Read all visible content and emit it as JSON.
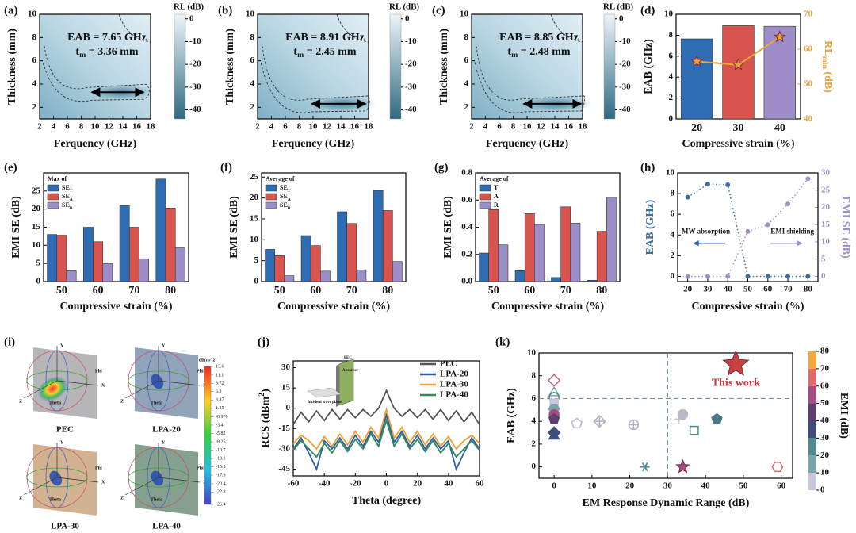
{
  "chart_data": [
    {
      "type": "heatmap",
      "panel": "(a)",
      "xlabel": "Ferquency (GHz)",
      "ylabel": "Thickness (mm)",
      "xlim": [
        2,
        18
      ],
      "xticks": [
        2,
        4,
        6,
        8,
        10,
        12,
        14,
        16,
        18
      ],
      "ylim": [
        1,
        10
      ],
      "yticks": [
        2,
        4,
        6,
        8,
        10
      ],
      "colorbar": {
        "title": "RL (dB)",
        "lim": [
          -44,
          2
        ],
        "ticks": [
          0,
          -10,
          -20,
          -30,
          -40
        ],
        "colors": [
          "#eef4fa",
          "#2f6a80"
        ]
      },
      "annotations": [
        "EAB = 7.65 GHz",
        {
          "text": "t",
          "sub": "m",
          "suffix": " = 3.36 mm"
        }
      ],
      "arrow": {
        "x": [
          9.5,
          17
        ],
        "y": 3.3
      }
    },
    {
      "type": "heatmap",
      "panel": "(b)",
      "xlabel": "Ferquency (GHz)",
      "ylabel": "Thickness (mm)",
      "xlim": [
        2,
        18
      ],
      "xticks": [
        2,
        4,
        6,
        8,
        10,
        12,
        14,
        16,
        18
      ],
      "ylim": [
        1,
        10
      ],
      "yticks": [
        2,
        4,
        6,
        8,
        10
      ],
      "colorbar": {
        "title": "RL (dB)",
        "lim": [
          -44,
          2
        ],
        "ticks": [
          0,
          -10,
          -20,
          -30,
          -40
        ],
        "colors": [
          "#eef4fa",
          "#2f6a80"
        ]
      },
      "annotations": [
        "EAB = 8.91 GHz",
        {
          "text": "t",
          "sub": "m",
          "suffix": " = 2.45 mm"
        }
      ],
      "arrow": {
        "x": [
          9.8,
          17.6
        ],
        "y": 2.3
      }
    },
    {
      "type": "heatmap",
      "panel": "(c)",
      "xlabel": "Ferquency (GHz)",
      "ylabel": "Thickness (mm)",
      "xlim": [
        2,
        18
      ],
      "xticks": [
        2,
        4,
        6,
        8,
        10,
        12,
        14,
        16,
        18
      ],
      "ylim": [
        1,
        10
      ],
      "yticks": [
        2,
        4,
        6,
        8,
        10
      ],
      "colorbar": {
        "title": "RL (dB)",
        "lim": [
          -44,
          2
        ],
        "ticks": [
          0,
          -10,
          -20,
          -30,
          -40
        ],
        "colors": [
          "#eef4fa",
          "#2f6a80"
        ]
      },
      "annotations": [
        "EAB = 8.85 GHz",
        {
          "text": "t",
          "sub": "m",
          "suffix": " = 2.48 mm"
        }
      ],
      "arrow": {
        "x": [
          9.5,
          17.8
        ],
        "y": 2.3
      }
    },
    {
      "type": "bar",
      "panel": "(d)",
      "xlabel": "Compressive strain (%)",
      "ylabel": "EAB (GHz)",
      "y2label": {
        "text": "RL",
        "sub": "min",
        "suffix": " (dB)"
      },
      "categories": [
        "20",
        "30",
        "40"
      ],
      "ylim": [
        0,
        10
      ],
      "yticks": [
        0,
        2,
        4,
        6,
        8,
        10
      ],
      "y2lim": [
        40,
        70
      ],
      "y2ticks": [
        40,
        50,
        60,
        70
      ],
      "series": [
        {
          "colors": [
            "#2e6db4",
            "#d9534f",
            "#9d8ec9"
          ],
          "values": [
            7.65,
            8.91,
            8.85
          ]
        },
        {
          "axis": "y2",
          "color": "#e8a33c",
          "values": [
            56.5,
            55.5,
            63.5
          ]
        }
      ]
    },
    {
      "type": "grouped_bar",
      "panel": "(e)",
      "legend_title": "Max of",
      "xlabel": "Compressive strain (%)",
      "ylabel": "EMI SE (dB)",
      "categories": [
        "50",
        "60",
        "70",
        "80"
      ],
      "ylim": [
        0,
        30
      ],
      "yticks": [
        0,
        5,
        10,
        15,
        20,
        25
      ],
      "series": [
        {
          "name": {
            "text": "SE",
            "sub": "T"
          },
          "color": "#2e6db4",
          "values": [
            13,
            15,
            21,
            28.3
          ]
        },
        {
          "name": {
            "text": "SE",
            "sub": "A"
          },
          "color": "#d9534f",
          "values": [
            12.8,
            11,
            15,
            20.3
          ]
        },
        {
          "name": {
            "text": "SE",
            "sub": "R"
          },
          "color": "#9d8ec9",
          "values": [
            3,
            5,
            6.3,
            9.3
          ]
        }
      ]
    },
    {
      "type": "grouped_bar",
      "panel": "(f)",
      "legend_title": "Average of",
      "xlabel": "Compressive strain (%)",
      "ylabel": "EMI SE (dB)",
      "categories": [
        "50",
        "60",
        "70",
        "80"
      ],
      "ylim": [
        0,
        26
      ],
      "yticks": [
        0,
        5,
        10,
        15,
        20,
        25
      ],
      "series": [
        {
          "name": {
            "text": "SE",
            "sub": "T"
          },
          "color": "#2e6db4",
          "values": [
            7.7,
            11,
            16.7,
            21.8
          ]
        },
        {
          "name": {
            "text": "SE",
            "sub": "A"
          },
          "color": "#d9534f",
          "values": [
            6.2,
            8.6,
            13.9,
            17
          ]
        },
        {
          "name": {
            "text": "SE",
            "sub": "R"
          },
          "color": "#9d8ec9",
          "values": [
            1.4,
            2.5,
            2.8,
            4.8
          ]
        }
      ]
    },
    {
      "type": "grouped_bar",
      "panel": "(g)",
      "legend_title": "Average of",
      "xlabel": "Compressive strain (%)",
      "ylabel": "EMI SE (dB)",
      "categories": [
        "50",
        "60",
        "70",
        "80"
      ],
      "ylim": [
        0,
        0.8
      ],
      "yticks": [
        {
          "value": 0,
          "label": "0.0"
        },
        0.2,
        0.4,
        0.6,
        0.8
      ],
      "series": [
        {
          "name": "T",
          "color": "#2e6db4",
          "values": [
            0.21,
            0.08,
            0.03,
            0.01
          ]
        },
        {
          "name": "A",
          "color": "#d9534f",
          "values": [
            0.53,
            0.5,
            0.55,
            0.37
          ]
        },
        {
          "name": "R",
          "color": "#9d8ec9",
          "values": [
            0.27,
            0.42,
            0.43,
            0.62
          ]
        }
      ]
    },
    {
      "type": "scatter",
      "panel": "(h)",
      "xlabel": "Compressive strain (%)",
      "ylabel": "EAB (GHz)",
      "y2label": "EMI SE (dB)",
      "annotations": [
        "MW absorption",
        "EMI shielding"
      ],
      "xlim": [
        15,
        85
      ],
      "xticks": [
        20,
        30,
        40,
        50,
        60,
        70,
        80
      ],
      "ylim": [
        -0.5,
        10
      ],
      "yticks": [
        0,
        2,
        4,
        6,
        8,
        10
      ],
      "y2lim": [
        -1.5,
        30
      ],
      "y2ticks": [
        0,
        5,
        10,
        15,
        20,
        25,
        30
      ],
      "x": [
        20,
        30,
        40,
        50,
        60,
        70,
        80
      ],
      "series": [
        {
          "color": "#3a6ea5",
          "values": [
            7.65,
            8.91,
            8.85,
            0,
            0,
            0,
            0
          ]
        },
        {
          "axis": "y2",
          "color": "#9d8ec9",
          "values": [
            0,
            0,
            0,
            13,
            15,
            21,
            28.3
          ]
        }
      ]
    },
    {
      "type": "render",
      "panel": "(i)",
      "labels": [
        "PEC",
        "LPA-20",
        "LPA-30",
        "LPA-40"
      ],
      "colors": [
        "#a9a9ad",
        "#7e93ad",
        "#c9a67e",
        "#708f7a"
      ],
      "axis_labels": [
        "Y",
        "X",
        "Z",
        "Phi",
        "Theta"
      ],
      "colorbar": {
        "title": "dB(m^2)",
        "ticks": [
          13.6,
          11.1,
          8.72,
          6.3,
          3.87,
          1.45,
          -0.976,
          -3.4,
          -5.82,
          -8.25,
          -10.7,
          -13.1,
          -15.5,
          -17.9,
          -20.4,
          -22.8,
          -26.4
        ]
      }
    },
    {
      "type": "line",
      "panel": "(j)",
      "xlabel": "Theta (degree)",
      "ylabel": {
        "text": "RCS (dBm",
        "sup": "2",
        "suffix": ")"
      },
      "inset_labels": [
        "PEC",
        "Absorber",
        "Incident wave plane"
      ],
      "xlim": [
        -60,
        60
      ],
      "xticks": [
        -60,
        -40,
        -20,
        0,
        20,
        40,
        60
      ],
      "ylim": [
        -50,
        35
      ],
      "yticks": [
        -45,
        -30,
        -15,
        0,
        15,
        30
      ],
      "x": [
        -60,
        -55,
        -50,
        -45,
        -40,
        -35,
        -30,
        -25,
        -20,
        -15,
        -10,
        -5,
        0,
        5,
        10,
        15,
        20,
        25,
        30,
        35,
        40,
        45,
        50,
        55,
        60
      ],
      "series": [
        {
          "name": "PEC",
          "color": "#555555",
          "values": [
            -12,
            -3,
            -10,
            -2,
            -9,
            -1,
            -8,
            -1,
            -7,
            -1,
            -6,
            0,
            13,
            0,
            -6,
            -1,
            -7,
            -1,
            -8,
            -1,
            -9,
            -2,
            -10,
            -3,
            -12
          ]
        },
        {
          "name": "LPA-20",
          "color": "#2e5fa8",
          "values": [
            -30,
            -22,
            -33,
            -45,
            -24,
            -30,
            -22,
            -30,
            -20,
            -28,
            -17,
            -25,
            -5,
            -25,
            -17,
            -28,
            -20,
            -30,
            -22,
            -30,
            -24,
            -45,
            -33,
            -22,
            -30
          ]
        },
        {
          "name": "LPA-30",
          "color": "#f0a030",
          "values": [
            -26,
            -20,
            -24,
            -30,
            -21,
            -28,
            -19,
            -27,
            -17,
            -25,
            -14,
            -22,
            -1,
            -22,
            -14,
            -25,
            -17,
            -27,
            -19,
            -28,
            -21,
            -30,
            -24,
            -20,
            -26
          ]
        },
        {
          "name": "LPA-40",
          "color": "#2e8a5a",
          "values": [
            -31,
            -24,
            -30,
            -36,
            -26,
            -33,
            -24,
            -32,
            -23,
            -30,
            -19,
            -28,
            -9,
            -28,
            -19,
            -30,
            -23,
            -32,
            -24,
            -33,
            -26,
            -36,
            -30,
            -24,
            -31
          ]
        }
      ]
    },
    {
      "type": "scatter_markers",
      "panel": "(k)",
      "xlabel": "EM Response Dynamic Range (dB)",
      "ylabel": "EAB (GHz)",
      "annotation": "This work",
      "xlim": [
        -4,
        63
      ],
      "xticks": [
        0,
        10,
        20,
        30,
        40,
        50,
        60
      ],
      "ylim": [
        -1,
        10
      ],
      "yticks": [
        0,
        2,
        4,
        6,
        8,
        10
      ],
      "ref_lines": {
        "x": 30,
        "y": 6
      },
      "colorbar": {
        "title": "EMI (dB)",
        "lim": [
          0,
          80
        ],
        "ticks": [
          0,
          10,
          20,
          30,
          40,
          50,
          60,
          70,
          80
        ],
        "colors": [
          "#c8c8dc",
          "#7aa5a8",
          "#4f8a90",
          "#3e4c7a",
          "#5e3e6e",
          "#a64d7d",
          "#de6a6a",
          "#f2a83c"
        ]
      },
      "points": [
        {
          "x": 0,
          "y": 7.6,
          "marker": "diamond",
          "color": "#c06080",
          "filled": false
        },
        {
          "x": 0,
          "y": 6.5,
          "marker": "triangle",
          "color": "#7aa5a8",
          "filled": false
        },
        {
          "x": 0,
          "y": 6.1,
          "marker": "circle",
          "color": "#4f8a90",
          "filled": false
        },
        {
          "x": 0,
          "y": 5.6,
          "marker": "square",
          "color": "#c8c8dc",
          "filled": true
        },
        {
          "x": 0,
          "y": 5.1,
          "marker": "hexagon",
          "color": "#7aa5a8",
          "filled": true
        },
        {
          "x": 0,
          "y": 4.6,
          "marker": "circle",
          "color": "#a64d7d",
          "filled": true
        },
        {
          "x": 0,
          "y": 4.2,
          "marker": "pentagon",
          "color": "#5e3e6e",
          "filled": true
        },
        {
          "x": 0,
          "y": 3.0,
          "marker": "diamond",
          "color": "#3e4c7a",
          "filled": true
        },
        {
          "x": 0,
          "y": 2.7,
          "marker": "triangle",
          "color": "#3e4c7a",
          "filled": true
        },
        {
          "x": 6,
          "y": 3.8,
          "marker": "pentagon",
          "color": "#b8b8cc",
          "filled": false
        },
        {
          "x": 12,
          "y": 4.0,
          "marker": "diamondplus",
          "color": "#b0b0c8",
          "filled": false
        },
        {
          "x": 21,
          "y": 3.7,
          "marker": "circleplus",
          "color": "#b0b0c8",
          "filled": false
        },
        {
          "x": 24,
          "y": 0,
          "marker": "asterisk",
          "color": "#4f8a90",
          "filled": true
        },
        {
          "x": 33,
          "y": 4.2,
          "marker": "plus",
          "color": "#c8c8dc",
          "filled": true
        },
        {
          "x": 34,
          "y": 4.6,
          "marker": "circle",
          "color": "#b8b8c8",
          "filled": true
        },
        {
          "x": 34,
          "y": 0,
          "marker": "star",
          "color": "#a64d7d",
          "filled": true
        },
        {
          "x": 37,
          "y": 3.2,
          "marker": "square",
          "color": "#4f8a90",
          "filled": false
        },
        {
          "x": 43,
          "y": 4.2,
          "marker": "pentagon",
          "color": "#4a7a88",
          "filled": true
        },
        {
          "x": 59,
          "y": 0,
          "marker": "hexagon",
          "color": "#de6a6a",
          "filled": false
        },
        {
          "x": 48,
          "y": 9,
          "marker": "star",
          "color": "#c84040",
          "filled": true,
          "size": 2
        }
      ]
    }
  ]
}
